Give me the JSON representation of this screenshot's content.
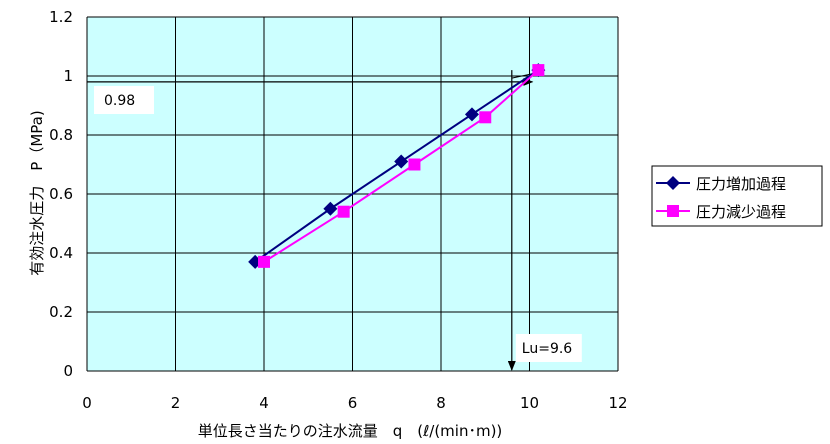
{
  "chart_data": {
    "type": "line",
    "title": "",
    "xlabel": "単位長さ当たりの注水流量　q　(ℓ/(min･m))",
    "ylabel": "有効注水圧力　P（MPa)",
    "xlim": [
      0,
      12
    ],
    "ylim": [
      0,
      1.2
    ],
    "xticks": [
      "0",
      "2",
      "4",
      "6",
      "8",
      "10",
      "12"
    ],
    "yticks": [
      "0",
      "0.2",
      "0.4",
      "0.6",
      "0.8",
      "1",
      "1.2"
    ],
    "grid": true,
    "plot_background": "#ccffff",
    "legend_position": "right",
    "series": [
      {
        "name": "圧力増加過程",
        "color": "#000080",
        "marker": "diamond",
        "x": [
          3.8,
          5.5,
          7.1,
          8.7,
          10.2
        ],
        "y": [
          0.37,
          0.55,
          0.71,
          0.87,
          1.02
        ]
      },
      {
        "name": "圧力減少過程",
        "color": "#ff00ff",
        "marker": "square",
        "x": [
          4.0,
          5.8,
          7.4,
          9.0,
          10.2
        ],
        "y": [
          0.37,
          0.54,
          0.7,
          0.86,
          1.02
        ]
      }
    ],
    "annotations": [
      {
        "label": "0.98",
        "value": 0.98,
        "axis": "y",
        "color": "#000000"
      },
      {
        "label": "Lu=9.6",
        "value": 9.6,
        "axis": "x",
        "color": "#000000"
      }
    ]
  }
}
